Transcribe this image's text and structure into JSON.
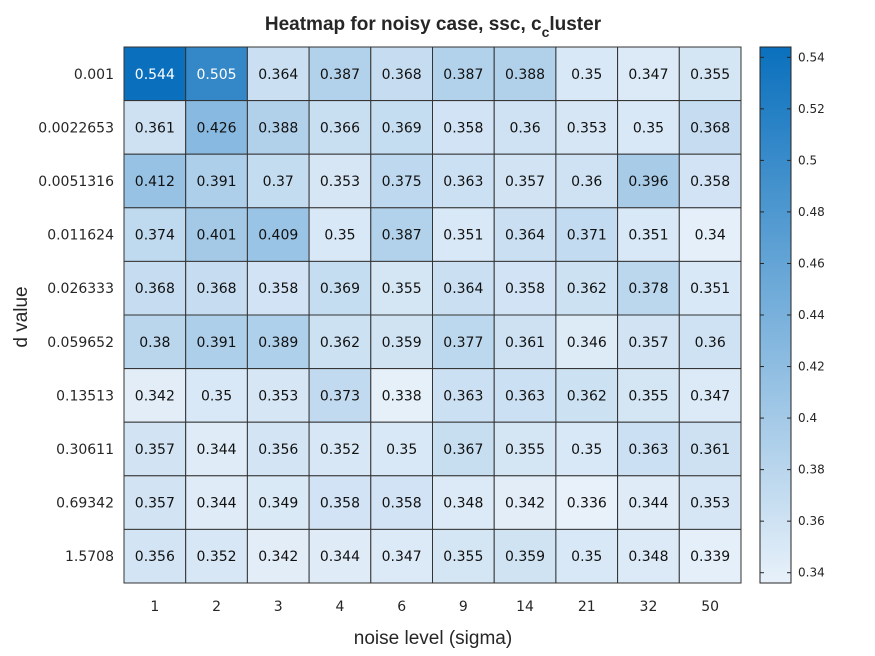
{
  "chart_data": {
    "type": "heatmap",
    "title": "Heatmap for noisy case, ssc, c",
    "title_subscript": "c",
    "title_suffix": "luster",
    "xlabel": "noise level (sigma)",
    "ylabel": "d value",
    "x_categories": [
      "1",
      "2",
      "3",
      "4",
      "6",
      "9",
      "14",
      "21",
      "32",
      "50"
    ],
    "y_categories": [
      "0.001",
      "0.0022653",
      "0.0051316",
      "0.011624",
      "0.026333",
      "0.059652",
      "0.13513",
      "0.30611",
      "0.69342",
      "1.5708"
    ],
    "values": [
      [
        0.544,
        0.505,
        0.364,
        0.387,
        0.368,
        0.387,
        0.388,
        0.35,
        0.347,
        0.355
      ],
      [
        0.361,
        0.426,
        0.388,
        0.366,
        0.369,
        0.358,
        0.36,
        0.353,
        0.35,
        0.368
      ],
      [
        0.412,
        0.391,
        0.37,
        0.353,
        0.375,
        0.363,
        0.357,
        0.36,
        0.396,
        0.358
      ],
      [
        0.374,
        0.401,
        0.409,
        0.35,
        0.387,
        0.351,
        0.364,
        0.371,
        0.351,
        0.34
      ],
      [
        0.368,
        0.368,
        0.358,
        0.369,
        0.355,
        0.364,
        0.358,
        0.362,
        0.378,
        0.351
      ],
      [
        0.38,
        0.391,
        0.389,
        0.362,
        0.359,
        0.377,
        0.361,
        0.346,
        0.357,
        0.36
      ],
      [
        0.342,
        0.35,
        0.353,
        0.373,
        0.338,
        0.363,
        0.363,
        0.362,
        0.355,
        0.347
      ],
      [
        0.357,
        0.344,
        0.356,
        0.352,
        0.35,
        0.367,
        0.355,
        0.35,
        0.363,
        0.361
      ],
      [
        0.357,
        0.344,
        0.349,
        0.358,
        0.358,
        0.348,
        0.342,
        0.336,
        0.344,
        0.353
      ],
      [
        0.356,
        0.352,
        0.342,
        0.344,
        0.347,
        0.355,
        0.359,
        0.35,
        0.348,
        0.339
      ]
    ],
    "value_labels": [
      [
        "0.544",
        "0.505",
        "0.364",
        "0.387",
        "0.368",
        "0.387",
        "0.388",
        "0.35",
        "0.347",
        "0.355"
      ],
      [
        "0.361",
        "0.426",
        "0.388",
        "0.366",
        "0.369",
        "0.358",
        "0.36",
        "0.353",
        "0.35",
        "0.368"
      ],
      [
        "0.412",
        "0.391",
        "0.37",
        "0.353",
        "0.375",
        "0.363",
        "0.357",
        "0.36",
        "0.396",
        "0.358"
      ],
      [
        "0.374",
        "0.401",
        "0.409",
        "0.35",
        "0.387",
        "0.351",
        "0.364",
        "0.371",
        "0.351",
        "0.34"
      ],
      [
        "0.368",
        "0.368",
        "0.358",
        "0.369",
        "0.355",
        "0.364",
        "0.358",
        "0.362",
        "0.378",
        "0.351"
      ],
      [
        "0.38",
        "0.391",
        "0.389",
        "0.362",
        "0.359",
        "0.377",
        "0.361",
        "0.346",
        "0.357",
        "0.36"
      ],
      [
        "0.342",
        "0.35",
        "0.353",
        "0.373",
        "0.338",
        "0.363",
        "0.363",
        "0.362",
        "0.355",
        "0.347"
      ],
      [
        "0.357",
        "0.344",
        "0.356",
        "0.352",
        "0.35",
        "0.367",
        "0.355",
        "0.35",
        "0.363",
        "0.361"
      ],
      [
        "0.357",
        "0.344",
        "0.349",
        "0.358",
        "0.358",
        "0.348",
        "0.342",
        "0.336",
        "0.344",
        "0.353"
      ],
      [
        "0.356",
        "0.352",
        "0.342",
        "0.344",
        "0.347",
        "0.355",
        "0.359",
        "0.35",
        "0.348",
        "0.339"
      ]
    ],
    "colorbar": {
      "range": [
        0.336,
        0.544
      ],
      "ticks": [
        0.34,
        0.36,
        0.38,
        0.4,
        0.42,
        0.44,
        0.46,
        0.48,
        0.5,
        0.52,
        0.54
      ],
      "tick_labels": [
        "0.34",
        "0.36",
        "0.38",
        "0.4",
        "0.42",
        "0.44",
        "0.46",
        "0.48",
        "0.5",
        "0.52",
        "0.54"
      ],
      "low_color": "#e8f1fa",
      "high_color": "#0a70bd"
    },
    "grid": true,
    "legend_placement": "right"
  },
  "colors": {
    "cell_border": "#333333",
    "text_dark": "#111111",
    "text_light": "#ffffff",
    "axis_text": "#262626"
  }
}
